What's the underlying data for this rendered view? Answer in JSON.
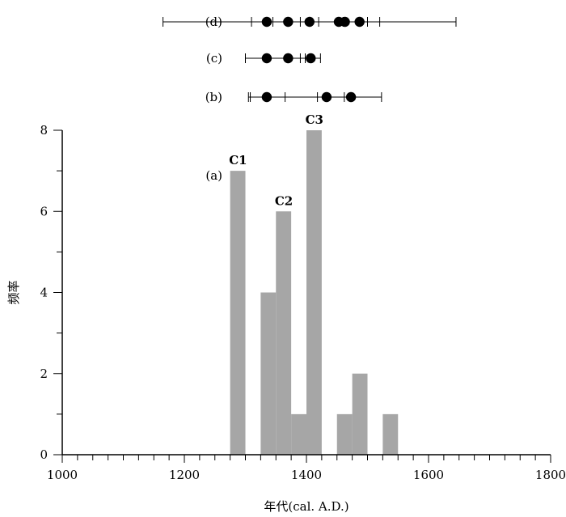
{
  "chart_data": {
    "type": "bar",
    "xlabel": "年代(cal. A.D.)",
    "ylabel": "频率",
    "xlim": [
      1000,
      1800
    ],
    "ylim": [
      0,
      8
    ],
    "x_ticks": [
      "1000",
      "1200",
      "1400",
      "1600",
      "1800"
    ],
    "y_ticks": [
      "0",
      "2",
      "4",
      "6",
      "8"
    ],
    "bar_color": "#a6a6a6",
    "histogram": {
      "label": "(a)",
      "bins": [
        {
          "start": 1275,
          "end": 1300,
          "count": 7
        },
        {
          "start": 1325,
          "end": 1350,
          "count": 4
        },
        {
          "start": 1350,
          "end": 1375,
          "count": 6
        },
        {
          "start": 1375,
          "end": 1400,
          "count": 1
        },
        {
          "start": 1400,
          "end": 1425,
          "count": 8
        },
        {
          "start": 1450,
          "end": 1475,
          "count": 1
        },
        {
          "start": 1475,
          "end": 1500,
          "count": 2
        },
        {
          "start": 1525,
          "end": 1550,
          "count": 1
        }
      ]
    },
    "annotations": [
      {
        "text": "C1",
        "x": 1288,
        "y": 7
      },
      {
        "text": "C2",
        "x": 1363,
        "y": 6
      },
      {
        "text": "C3",
        "x": 1413,
        "y": 8
      }
    ],
    "interval_rows": [
      {
        "label": "(d)",
        "range": [
          1165,
          1645
        ],
        "ticks": [
          1310,
          1345,
          1390,
          1420,
          1460,
          1500,
          1520
        ],
        "points": [
          1335,
          1370,
          1405,
          1453,
          1463,
          1487
        ]
      },
      {
        "label": "(c)",
        "range": [
          1300,
          1423
        ],
        "ticks": [
          1390,
          1398
        ],
        "points": [
          1335,
          1370,
          1407
        ]
      },
      {
        "label": "(b)",
        "range": [
          1305,
          1523
        ],
        "ticks": [
          1308,
          1365,
          1418,
          1462
        ],
        "points": [
          1335,
          1433,
          1473
        ]
      }
    ]
  }
}
